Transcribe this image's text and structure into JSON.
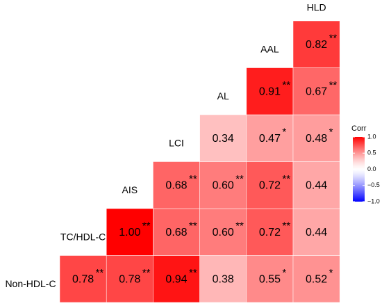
{
  "chart_data": {
    "type": "corrplot",
    "variables": [
      "Non-HDL-C",
      "TC/HDL-C",
      "AIS",
      "LCI",
      "AL",
      "AAL",
      "HLD"
    ],
    "rows": [
      {
        "name": "Non-HDL-C",
        "values": [
          0.78,
          0.78,
          0.94,
          0.38,
          0.55,
          0.52
        ],
        "value_labels": [
          "0.78",
          "0.78",
          "0.94",
          "0.38",
          "0.55",
          "0.52"
        ],
        "stars": [
          "**",
          "**",
          "**",
          null,
          "*",
          "*"
        ]
      },
      {
        "name": "TC/HDL-C",
        "values": [
          1.0,
          0.68,
          0.6,
          0.72,
          0.44
        ],
        "value_labels": [
          "1.00",
          "0.68",
          "0.60",
          "0.72",
          "0.44"
        ],
        "stars": [
          "**",
          "**",
          "**",
          "**",
          null
        ]
      },
      {
        "name": "AIS",
        "values": [
          0.68,
          0.6,
          0.72,
          0.44
        ],
        "value_labels": [
          "0.68",
          "0.60",
          "0.72",
          "0.44"
        ],
        "stars": [
          "**",
          "**",
          "**",
          null
        ]
      },
      {
        "name": "LCI",
        "values": [
          0.34,
          0.47,
          0.48
        ],
        "value_labels": [
          "0.34",
          "0.47",
          "0.48"
        ],
        "stars": [
          null,
          "*",
          "*"
        ]
      },
      {
        "name": "AL",
        "values": [
          0.91,
          0.67
        ],
        "value_labels": [
          "0.91",
          "0.67"
        ],
        "stars": [
          "**",
          "**"
        ]
      },
      {
        "name": "AAL",
        "values": [
          0.82
        ],
        "value_labels": [
          "0.82"
        ],
        "stars": [
          "**"
        ]
      }
    ],
    "colors": {
      "low": "#0000ff",
      "mid": "#ffffff",
      "high": "#ff0000"
    },
    "legend": {
      "title": "Corr",
      "limits": [
        -1,
        1
      ],
      "ticks": [
        {
          "value": 1,
          "label": "1.0"
        },
        {
          "value": 0.5,
          "label": "0.5"
        },
        {
          "value": 0,
          "label": "0.0"
        },
        {
          "value": -0.5,
          "label": "−0.5"
        },
        {
          "value": -1,
          "label": "−1.0"
        }
      ]
    }
  }
}
